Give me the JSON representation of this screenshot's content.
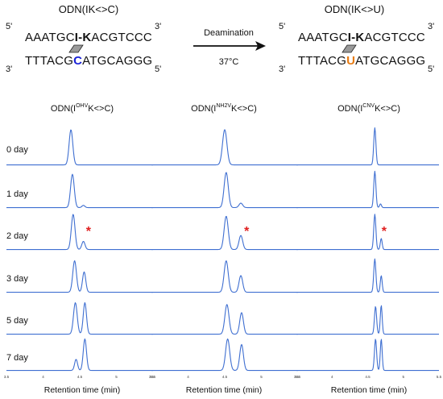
{
  "schemes": [
    {
      "title": "ODN(IK<>C)",
      "top_strand": {
        "prime_left": "5'",
        "pre": "AAATGC",
        "bold": "I-K",
        "post": "ACGTCCC",
        "prime_right": "3'"
      },
      "bottom_strand": {
        "prime_left": "3'",
        "pre": "TTTACG",
        "highlight": "C",
        "post": "ATGCAGGG",
        "prime_right": "5'"
      },
      "highlight_color": "#1a22d6"
    },
    {
      "title": "ODN(IK<>U)",
      "top_strand": {
        "prime_left": "5'",
        "pre": "AAATGC",
        "bold": "I-K",
        "post": "ACGTCCC",
        "prime_right": "3'"
      },
      "bottom_strand": {
        "prime_left": "3'",
        "pre": "TTTACG",
        "highlight": "U",
        "post": "ATGCAGGG",
        "prime_right": "5'"
      },
      "highlight_color": "#e87b12"
    }
  ],
  "reaction": {
    "above": "Deamination",
    "below": "37°C"
  },
  "panels": [
    {
      "label_pre": "ODN(I",
      "label_sup": "OHV",
      "label_post": "K<>C)",
      "ticks": [
        "3.5",
        "4",
        "4.5",
        "5",
        "5.5"
      ]
    },
    {
      "label_pre": "ODN(I",
      "label_sup": "NH2V",
      "label_post": "K<>C)",
      "ticks": [
        "3.5",
        "4",
        "4.5",
        "5",
        "5.5"
      ]
    },
    {
      "label_pre": "ODN(I",
      "label_sup": "CNV",
      "label_post": "K<>C)",
      "ticks": [
        "3.5",
        "4",
        "4.5",
        "5",
        "5.5"
      ]
    }
  ],
  "days": [
    "0 day",
    "1 day",
    "2 day",
    "3 day",
    "5 day",
    "7 day"
  ],
  "marker": "*",
  "xlabel": "Retention time (min)",
  "trace_color": "#3f6fd1",
  "traces": [
    [
      {
        "peaks": [
          [
            4.38,
            0.95,
            0.025
          ]
        ]
      },
      {
        "peaks": [
          [
            4.4,
            0.9,
            0.025
          ],
          [
            4.55,
            0.06,
            0.02
          ]
        ]
      },
      {
        "peaks": [
          [
            4.41,
            0.95,
            0.025
          ],
          [
            4.55,
            0.22,
            0.022
          ]
        ]
      },
      {
        "peaks": [
          [
            4.43,
            0.85,
            0.025
          ],
          [
            4.56,
            0.55,
            0.022
          ]
        ]
      },
      {
        "peaks": [
          [
            4.44,
            0.85,
            0.025
          ],
          [
            4.57,
            0.85,
            0.022
          ]
        ]
      },
      {
        "peaks": [
          [
            4.45,
            0.3,
            0.02
          ],
          [
            4.57,
            0.85,
            0.022
          ]
        ]
      }
    ],
    [
      {
        "peaks": [
          [
            4.5,
            0.95,
            0.03
          ]
        ]
      },
      {
        "peaks": [
          [
            4.52,
            0.95,
            0.028
          ],
          [
            4.72,
            0.12,
            0.025
          ]
        ]
      },
      {
        "peaks": [
          [
            4.52,
            0.9,
            0.028
          ],
          [
            4.72,
            0.38,
            0.025
          ]
        ]
      },
      {
        "peaks": [
          [
            4.52,
            0.85,
            0.028
          ],
          [
            4.72,
            0.45,
            0.025
          ]
        ]
      },
      {
        "peaks": [
          [
            4.53,
            0.8,
            0.028
          ],
          [
            4.73,
            0.58,
            0.025
          ]
        ]
      },
      {
        "peaks": [
          [
            4.54,
            0.85,
            0.028
          ],
          [
            4.73,
            0.7,
            0.025
          ]
        ]
      }
    ],
    [
      {
        "peaks": [
          [
            4.6,
            1.0,
            0.015
          ]
        ]
      },
      {
        "peaks": [
          [
            4.6,
            0.98,
            0.015
          ],
          [
            4.68,
            0.1,
            0.013
          ]
        ]
      },
      {
        "peaks": [
          [
            4.6,
            0.95,
            0.015
          ],
          [
            4.69,
            0.3,
            0.013
          ]
        ]
      },
      {
        "peaks": [
          [
            4.6,
            0.9,
            0.015
          ],
          [
            4.69,
            0.45,
            0.013
          ]
        ]
      },
      {
        "peaks": [
          [
            4.61,
            0.75,
            0.015
          ],
          [
            4.69,
            0.78,
            0.013
          ]
        ]
      },
      {
        "peaks": [
          [
            4.61,
            0.85,
            0.015
          ],
          [
            4.69,
            0.85,
            0.013
          ]
        ]
      }
    ]
  ],
  "markers": [
    {
      "panel": 0,
      "day": 2,
      "x": 4.62
    },
    {
      "panel": 1,
      "day": 2,
      "x": 4.8
    },
    {
      "panel": 2,
      "day": 2,
      "x": 4.73
    }
  ]
}
